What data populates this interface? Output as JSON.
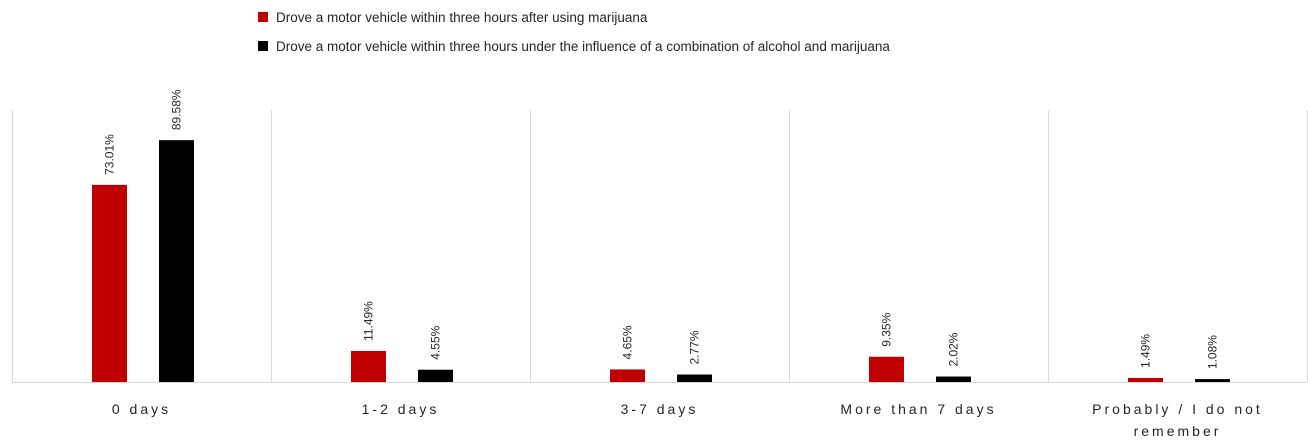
{
  "chart_data": {
    "type": "bar",
    "categories": [
      "0 days",
      "1-2 days",
      "3-7 days",
      "More than 7 days",
      "Probably / I do not remember"
    ],
    "category_label_lines": [
      [
        "0 days"
      ],
      [
        "1-2 days"
      ],
      [
        "3-7 days"
      ],
      [
        "More than 7 days"
      ],
      [
        "Probably / I do not",
        "remember"
      ]
    ],
    "series": [
      {
        "name": "Drove a motor vehicle within three hours after using marijuana",
        "color": "#c00000",
        "values": [
          73.01,
          11.49,
          4.65,
          9.35,
          1.49
        ],
        "labels": [
          "73.01%",
          "11.49%",
          "4.65%",
          "9.35%",
          "1.49%"
        ]
      },
      {
        "name": "Drove a motor vehicle within three hours under the influence of a combination of alcohol and marijuana",
        "color": "#000000",
        "values": [
          89.58,
          4.55,
          2.77,
          2.02,
          1.08
        ],
        "labels": [
          "89.58%",
          "4.55%",
          "2.77%",
          "2.02%",
          "1.08%"
        ]
      }
    ],
    "ylim": [
      0,
      100
    ],
    "legend_position": "top",
    "grid": false,
    "category_separators": true
  }
}
